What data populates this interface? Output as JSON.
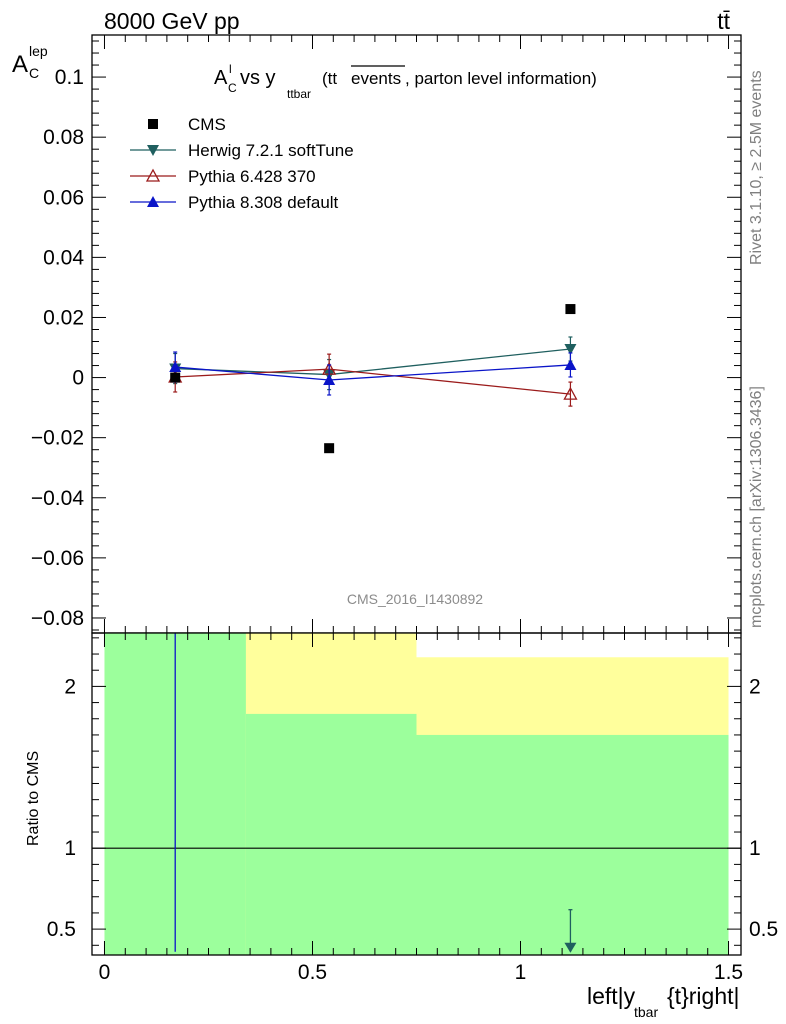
{
  "header": {
    "energy_label": "8000 GeV pp",
    "process_label": "tt̄"
  },
  "side_labels": {
    "rivet": "Rivet 3.1.10, ≥ 2.5M events",
    "mcplots": "mcplots.cern.ch [arXiv:1306.3436]"
  },
  "watermark": "CMS_2016_I1430892",
  "title": {
    "main": "A",
    "main_sub": "C",
    "main_sup": "l",
    "vs": " vs y",
    "vs_sub": "ttbar",
    "paren_open": " (tt",
    "paren_overline": "events",
    "paren_close": ", parton level information)"
  },
  "ylabel": {
    "base": "A",
    "sub": "C",
    "sup": "lep"
  },
  "xlabel": {
    "part1": "left|y",
    "sub": "tbar",
    "part2": "{t}right|"
  },
  "ratio_ylabel": "Ratio to CMS",
  "colors": {
    "cms": "#000000",
    "herwig": "#1f5f5f",
    "pythia6": "#9b1b1b",
    "pythia8": "#0a14c8",
    "band_green": "#9cff9c",
    "band_yellow": "#ffff9c"
  },
  "chart_data": {
    "type": "scatter",
    "x_range": [
      -0.03,
      1.53
    ],
    "xticks": [
      0,
      0.5,
      1,
      1.5
    ],
    "xtick_labels": [
      "0",
      "0.5",
      "1",
      "1.5"
    ],
    "bins": [
      [
        0,
        0.34
      ],
      [
        0.34,
        0.75
      ],
      [
        0.75,
        1.5
      ]
    ],
    "main_panel": {
      "ylim": [
        -0.085,
        0.114
      ],
      "yticks": [
        -0.08,
        -0.06,
        -0.04,
        -0.02,
        0,
        0.02,
        0.04,
        0.06,
        0.08,
        0.1
      ],
      "ytick_labels": [
        "−0.08",
        "−0.06",
        "−0.04",
        "−0.02",
        "0",
        "0.02",
        "0.04",
        "0.06",
        "0.08",
        "0.1"
      ],
      "series": [
        {
          "name": "CMS",
          "key": "cms",
          "marker": "square",
          "x": [
            0.17,
            0.54,
            1.12
          ],
          "y": [
            0.0,
            -0.0235,
            0.0228
          ],
          "yerr": [
            0,
            0,
            0
          ]
        },
        {
          "name": "Herwig 7.2.1 softTune",
          "key": "herwig",
          "marker": "triangle-down",
          "x": [
            0.17,
            0.54,
            1.12
          ],
          "y": [
            0.003,
            0.001,
            0.0095
          ],
          "yerr": [
            0.005,
            0.005,
            0.004
          ]
        },
        {
          "name": "Pythia 6.428 370",
          "key": "pythia6",
          "marker": "triangle-up-open",
          "x": [
            0.17,
            0.54,
            1.12
          ],
          "y": [
            0.0002,
            0.0028,
            -0.0055
          ],
          "yerr": [
            0.005,
            0.005,
            0.004
          ]
        },
        {
          "name": "Pythia 8.308 default",
          "key": "pythia8",
          "marker": "triangle-up",
          "x": [
            0.17,
            0.54,
            1.12
          ],
          "y": [
            0.0035,
            -0.0008,
            0.0042
          ],
          "yerr": [
            0.005,
            0.005,
            0.004
          ]
        }
      ]
    },
    "ratio_panel": {
      "ylim": [
        0.34,
        2.33
      ],
      "yticks": [
        0.5,
        1,
        2
      ],
      "ytick_labels": [
        "0.5",
        "1",
        "2"
      ],
      "bands": [
        {
          "x": [
            0,
            0.34
          ],
          "green": [
            0.34,
            2.33
          ],
          "yellow": [
            0.34,
            2.33
          ]
        },
        {
          "x": [
            0.34,
            0.75
          ],
          "green": [
            0.34,
            1.83
          ],
          "yellow": [
            0.34,
            2.33
          ]
        },
        {
          "x": [
            0.75,
            1.5
          ],
          "green": [
            0.34,
            1.7
          ],
          "yellow": [
            0.34,
            2.18
          ]
        }
      ],
      "ratio_line": 1,
      "markers": [
        {
          "series": "herwig",
          "x": 1.12,
          "y": 0.36,
          "err_low": 0.36,
          "err_high": 0.62
        }
      ],
      "vertical_error_lines": [
        {
          "series": "pythia8",
          "x": 0.17,
          "y_low": 0.36,
          "y_high": 2.33
        }
      ]
    }
  }
}
